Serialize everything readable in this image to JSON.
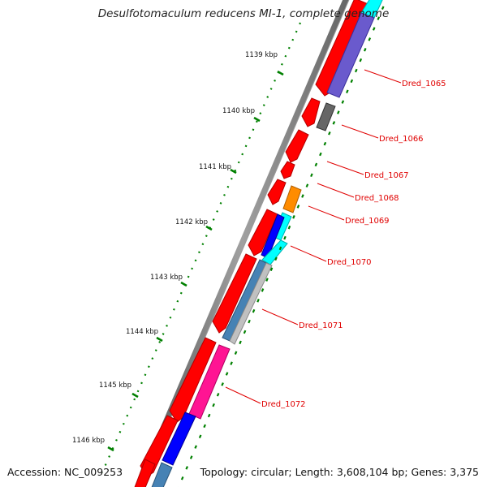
{
  "title": "Desulfotomaculum reducens MI-1, complete genome",
  "footer": {
    "accession": "Accession: NC_009253",
    "summary": "Topology: circular; Length: 3,608,104 bp; Genes: 3,375"
  },
  "ticks": [
    "1139 kbp",
    "1140 kbp",
    "1141 kbp",
    "1142 kbp",
    "1143 kbp",
    "1144 kbp",
    "1145 kbp",
    "1146 kbp"
  ],
  "gene_labels": [
    "Dred_1065",
    "Dred_1066",
    "Dred_1067",
    "Dred_1068",
    "Dred_1069",
    "Dred_1070",
    "Dred_1071",
    "Dred_1072"
  ],
  "colors": {
    "cds": "#ff0000",
    "backbone": "#808080",
    "tick": "#008000",
    "label": "#e00000",
    "feature_colors": [
      "#6a5acd",
      "#666666",
      "#ff8c00",
      "#00ffff",
      "#0000ff",
      "#4682b4",
      "#c0c0c0",
      "#ff1493"
    ]
  }
}
